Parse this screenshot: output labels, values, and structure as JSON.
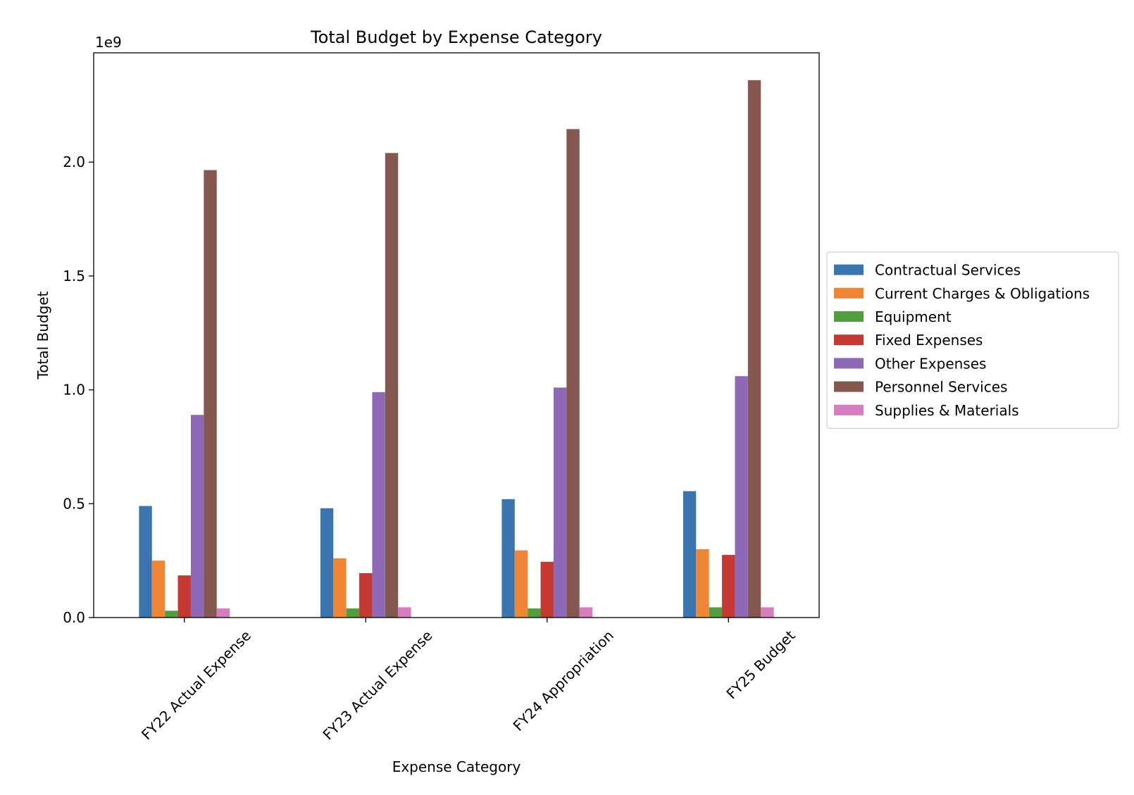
{
  "chart_data": {
    "type": "bar",
    "title": "Total Budget by Expense Category",
    "xlabel": "Expense Category",
    "ylabel": "Total Budget",
    "y_offset_label": "1e9",
    "ylim": [
      0,
      2.48
    ],
    "yticks": [
      0.0,
      0.5,
      1.0,
      1.5,
      2.0
    ],
    "ytick_labels": [
      "0.0",
      "0.5",
      "1.0",
      "1.5",
      "2.0"
    ],
    "grid": false,
    "legend_position": "right",
    "categories": [
      "FY22 Actual Expense",
      "FY23 Actual Expense",
      "FY24 Appropriation",
      "FY25 Budget"
    ],
    "series": [
      {
        "name": "Contractual Services",
        "color": "#3a75af",
        "values": [
          0.49,
          0.48,
          0.52,
          0.555
        ]
      },
      {
        "name": "Current Charges & Obligations",
        "color": "#ef8636",
        "values": [
          0.25,
          0.26,
          0.295,
          0.3
        ]
      },
      {
        "name": "Equipment",
        "color": "#519e3e",
        "values": [
          0.03,
          0.04,
          0.04,
          0.045
        ]
      },
      {
        "name": "Fixed Expenses",
        "color": "#c53932",
        "values": [
          0.185,
          0.195,
          0.245,
          0.275
        ]
      },
      {
        "name": "Other Expenses",
        "color": "#8d69b8",
        "values": [
          0.89,
          0.99,
          1.01,
          1.06
        ]
      },
      {
        "name": "Personnel Services",
        "color": "#84584e",
        "values": [
          1.965,
          2.04,
          2.145,
          2.36
        ]
      },
      {
        "name": "Supplies & Materials",
        "color": "#d57dbe",
        "values": [
          0.04,
          0.045,
          0.045,
          0.045
        ]
      }
    ]
  }
}
